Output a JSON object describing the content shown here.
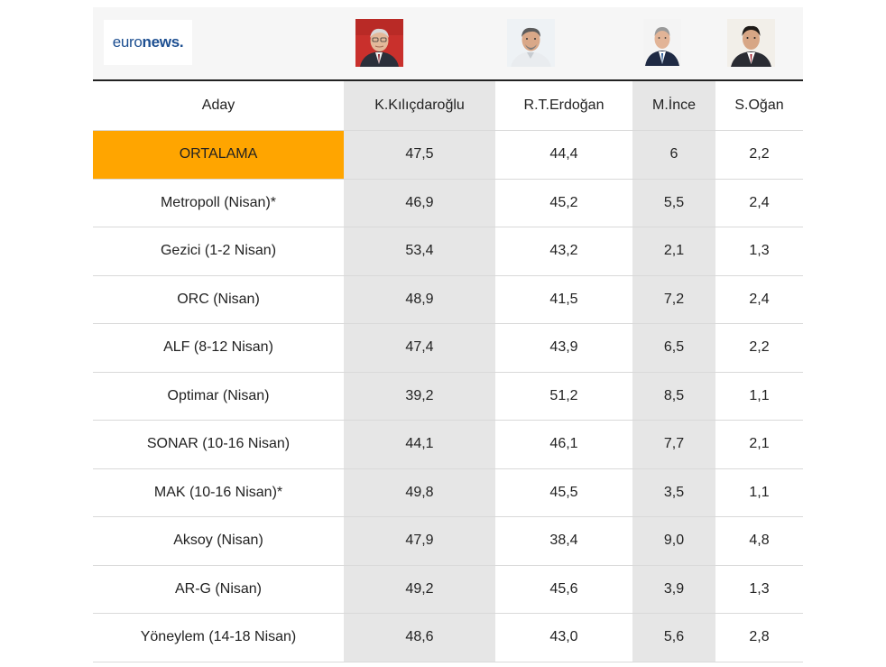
{
  "logo": {
    "part1": "euro",
    "part2": "news."
  },
  "colors": {
    "highlight": "#ffa500",
    "shade": "#e6e6e6",
    "brand": "#1d4f91"
  },
  "headers": [
    "Aday",
    "K.Kılıçdaroğlu",
    "R.T.Erdoğan",
    "M.İnce",
    "S.Oğan"
  ],
  "rows": [
    {
      "name": "ORTALAMA",
      "values": [
        "47,5",
        "44,4",
        "6",
        "2,2"
      ]
    },
    {
      "name": "Metropoll (Nisan)*",
      "values": [
        "46,9",
        "45,2",
        "5,5",
        "2,4"
      ]
    },
    {
      "name": "Gezici (1-2 Nisan)",
      "values": [
        "53,4",
        "43,2",
        "2,1",
        "1,3"
      ]
    },
    {
      "name": "ORC (Nisan)",
      "values": [
        "48,9",
        "41,5",
        "7,2",
        "2,4"
      ]
    },
    {
      "name": "ALF (8-12 Nisan)",
      "values": [
        "47,4",
        "43,9",
        "6,5",
        "2,2"
      ]
    },
    {
      "name": "Optimar (Nisan)",
      "values": [
        "39,2",
        "51,2",
        "8,5",
        "1,1"
      ]
    },
    {
      "name": "SONAR (10-16 Nisan)",
      "values": [
        "44,1",
        "46,1",
        "7,7",
        "2,1"
      ]
    },
    {
      "name": "MAK (10-16 Nisan)*",
      "values": [
        "49,8",
        "45,5",
        "3,5",
        "1,1"
      ]
    },
    {
      "name": "Aksoy (Nisan)",
      "values": [
        "47,9",
        "38,4",
        "9,0",
        "4,8"
      ]
    },
    {
      "name": "AR-G (Nisan)",
      "values": [
        "49,2",
        "45,6",
        "3,9",
        "1,3"
      ]
    },
    {
      "name": "Yöneylem (14-18 Nisan)",
      "values": [
        "48,6",
        "43,0",
        "5,6",
        "2,8"
      ]
    }
  ]
}
